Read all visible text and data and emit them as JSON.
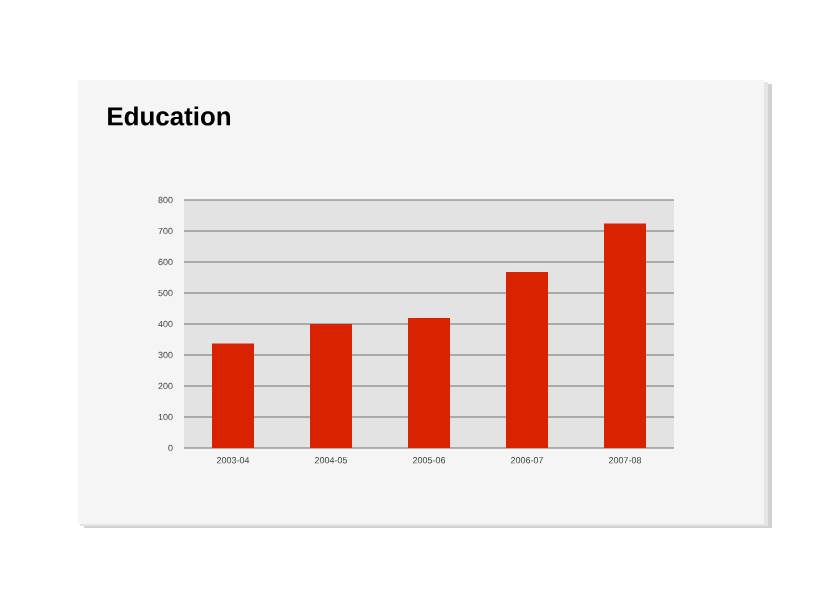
{
  "chart_data": {
    "type": "bar",
    "title": "Education",
    "categories": [
      "2003-04",
      "2004-05",
      "2005-06",
      "2006-07",
      "2007-08"
    ],
    "values": [
      337,
      400,
      419,
      568,
      724
    ],
    "color": "#d92200",
    "ylim": [
      0,
      800
    ],
    "yticks": [
      0,
      100,
      200,
      300,
      400,
      500,
      600,
      700,
      800
    ],
    "grid": "y"
  }
}
